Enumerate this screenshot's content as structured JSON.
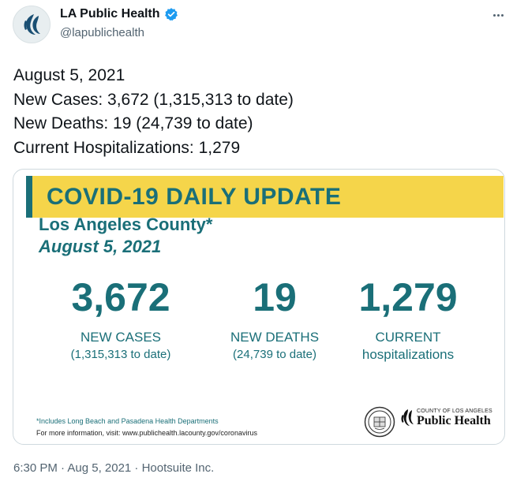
{
  "account": {
    "display_name": "LA Public Health",
    "handle": "@lapublichealth"
  },
  "tweet": {
    "lines": [
      "August 5, 2021",
      "New Cases: 3,672 (1,315,313 to date)",
      "New Deaths: 19 (24,739 to date)",
      "Current Hospitalizations: 1,279"
    ]
  },
  "card": {
    "banner_bold": "COVID-19",
    "banner_rest": " DAILY UPDATE",
    "county": "Los Angeles County*",
    "date": "August 5, 2021",
    "stats": [
      {
        "number": "3,672",
        "label": "NEW CASES",
        "sub": "(1,315,313 to date)"
      },
      {
        "number": "19",
        "label": "NEW DEATHS",
        "sub": "(24,739 to date)"
      },
      {
        "number": "1,279",
        "label": "CURRENT",
        "sub": "hospitalizations"
      }
    ],
    "footnote": "*Includes Long Beach and Pasadena Health Departments",
    "more_info": "For more information, visit: www.publichealth.lacounty.gov/coronavirus",
    "logo_small": "COUNTY OF LOS ANGELES",
    "logo_big": "Public Health"
  },
  "meta": {
    "timestamp": "6:30 PM · Aug 5, 2021 · Hootsuite Inc."
  },
  "colors": {
    "teal": "#1a6f78",
    "banner_yellow": "#f5d54a",
    "verified_blue": "#1d9bf0"
  },
  "icons": {
    "avatar": "la-public-health-logo-icon",
    "verified": "verified-badge-icon",
    "more": "more-options-icon",
    "seal": "county-seal-icon"
  }
}
